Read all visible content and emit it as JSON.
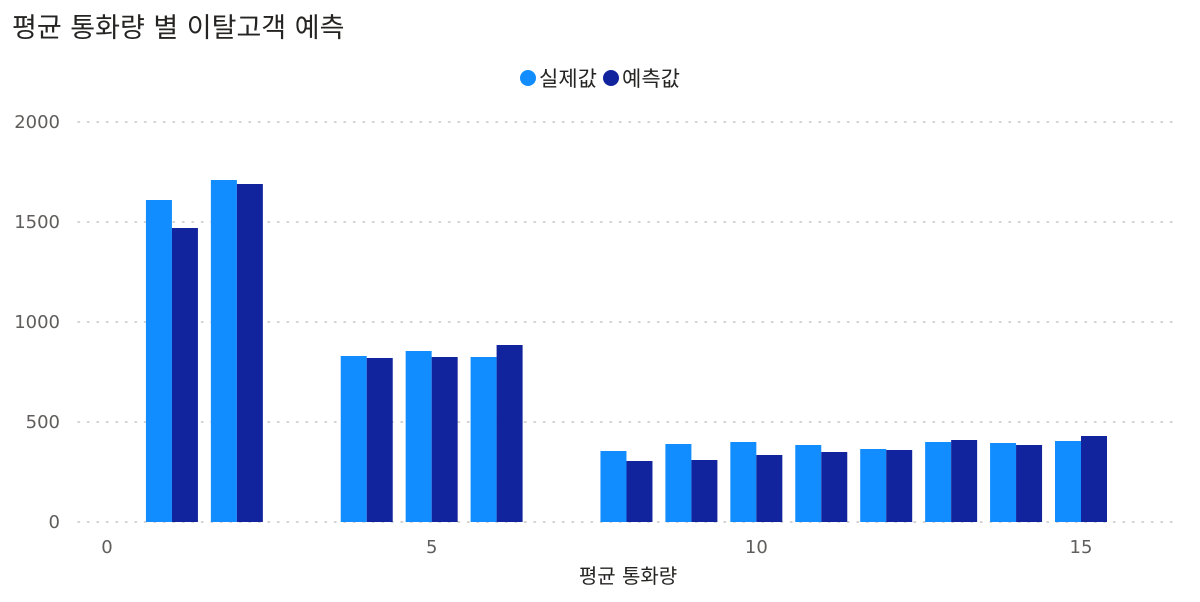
{
  "chart_data": {
    "type": "bar",
    "title": "평균 통화량 별 이탈고객 예측",
    "xlabel": "평균 통화량",
    "ylabel": "",
    "x": [
      1,
      2,
      4,
      5,
      6,
      8,
      9,
      10,
      11,
      12,
      13,
      14,
      15
    ],
    "series": [
      {
        "name": "실제값",
        "color": "#118DFF",
        "values": [
          1610,
          1710,
          830,
          855,
          825,
          355,
          390,
          400,
          385,
          365,
          400,
          395,
          405
        ]
      },
      {
        "name": "예측값",
        "color": "#12239E",
        "values": [
          1470,
          1690,
          820,
          825,
          885,
          305,
          310,
          335,
          350,
          360,
          410,
          385,
          430
        ]
      }
    ],
    "xlim": [
      0,
      16.5
    ],
    "xticks": [
      "0",
      "5",
      "10",
      "15"
    ],
    "ylim": [
      0,
      2000
    ],
    "yticks": [
      "0",
      "500",
      "1000",
      "1500",
      "2000"
    ],
    "grid": true,
    "legend": "top-center"
  }
}
